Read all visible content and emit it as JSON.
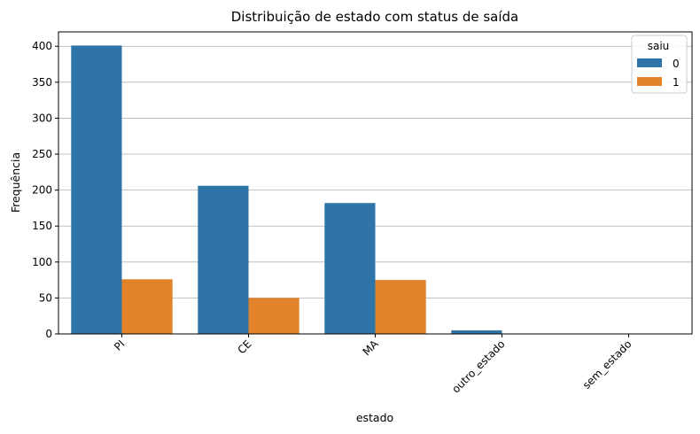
{
  "chart_data": {
    "type": "bar",
    "title": "Distribuição de estado com status de saída",
    "xlabel": "estado",
    "ylabel": "Frequência",
    "categories": [
      "PI",
      "CE",
      "MA",
      "outro_estado",
      "sem_estado"
    ],
    "series": [
      {
        "name": "0",
        "color": "#2f74a8",
        "values": [
          401,
          206,
          182,
          5,
          0
        ]
      },
      {
        "name": "1",
        "color": "#e2832b",
        "values": [
          76,
          50,
          75,
          0,
          0
        ]
      }
    ],
    "ylim": [
      0,
      420
    ],
    "yticks": [
      0,
      50,
      100,
      150,
      200,
      250,
      300,
      350,
      400
    ],
    "grid": "horizontal",
    "legend": {
      "title": "saiu",
      "placement": "top-right"
    },
    "xtick_rotation": -45
  }
}
